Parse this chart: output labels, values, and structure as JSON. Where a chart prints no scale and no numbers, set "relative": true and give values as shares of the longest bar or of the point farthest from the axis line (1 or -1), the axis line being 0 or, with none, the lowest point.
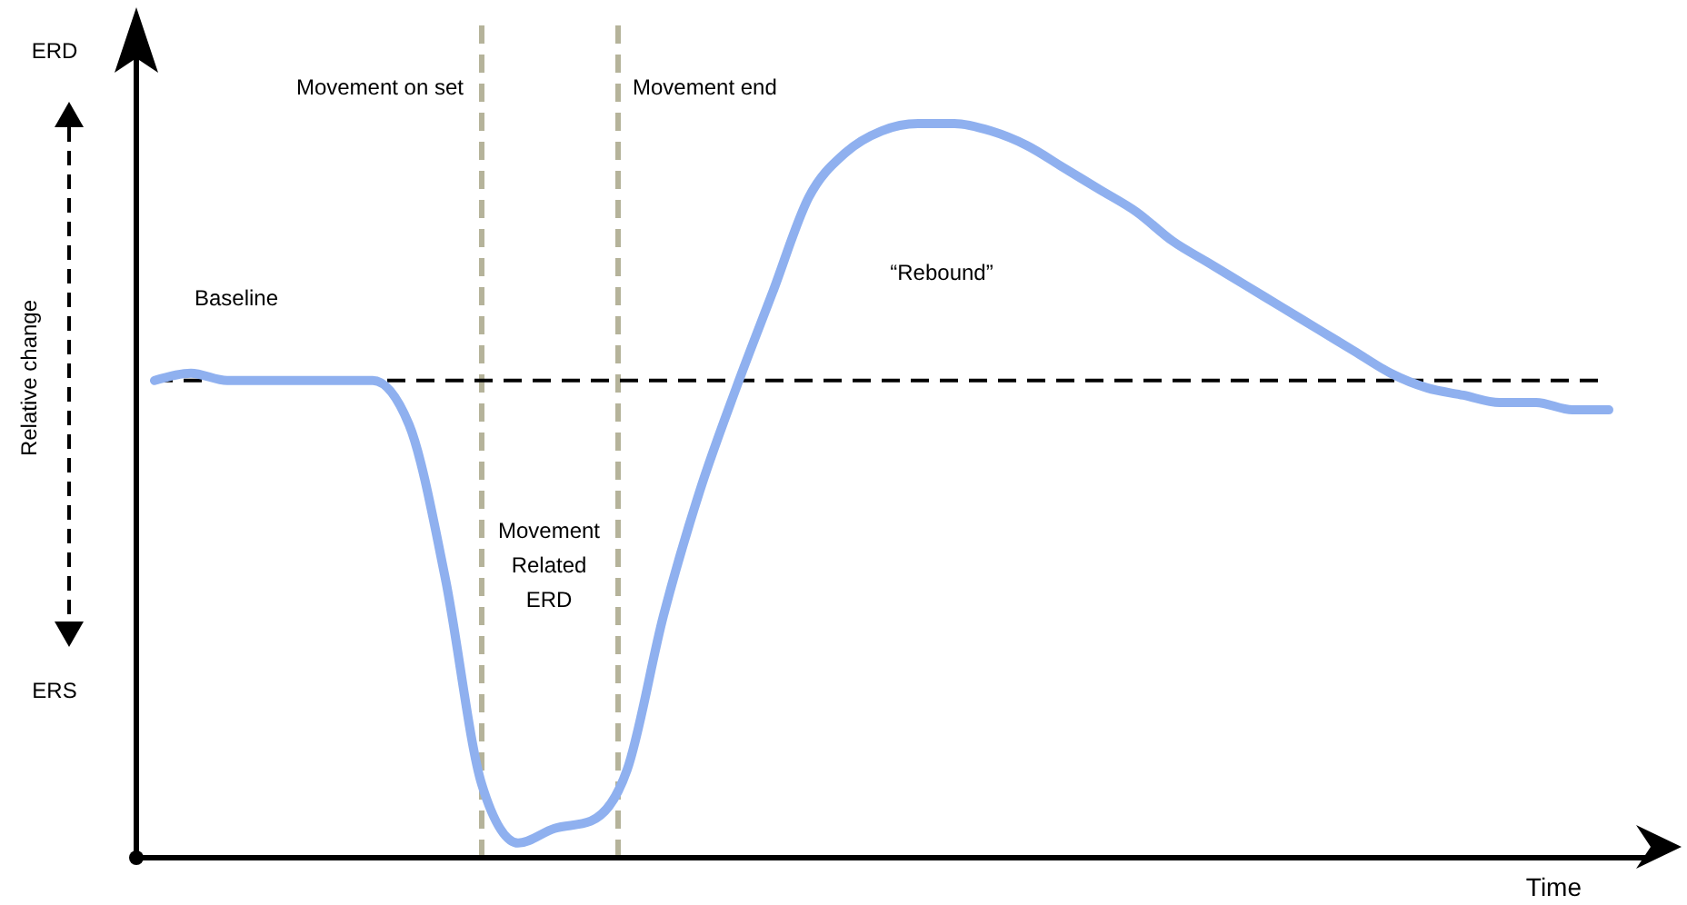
{
  "chart_data": {
    "type": "line",
    "relative": true,
    "xlabel": "Time",
    "ylabel": "Relative change",
    "categories": [
      null,
      null,
      null,
      null,
      null,
      null,
      null,
      null,
      null,
      null,
      null,
      null,
      null,
      null,
      null,
      null,
      null,
      null,
      null,
      null,
      null,
      null,
      null,
      null,
      null,
      null,
      null,
      null,
      null,
      null,
      null,
      null,
      null,
      null,
      null,
      null,
      null,
      null,
      null,
      null,
      null
    ],
    "series": [
      {
        "color": "#8fb0ef",
        "values": [
          0.65,
          0.66,
          0.65,
          0.65,
          0.65,
          0.65,
          0.65,
          0.59,
          0.38,
          0.1,
          0.02,
          0.04,
          0.05,
          0.12,
          0.33,
          0.5,
          0.64,
          0.77,
          0.9,
          0.96,
          0.99,
          1,
          1,
          0.99,
          0.97,
          0.94,
          0.91,
          0.88,
          0.84,
          0.81,
          0.78,
          0.75,
          0.72,
          0.69,
          0.66,
          0.64,
          0.63,
          0.62,
          0.62,
          0.61,
          0.61
        ]
      }
    ],
    "ref_lines": [
      {
        "axis": "y",
        "value": 0.65,
        "color": "#000000",
        "line_style": "dashed"
      }
    ],
    "annotations": [
      "ERD",
      "ERS",
      "Baseline",
      "Movement\nRelated\nERD",
      "“Rebound”",
      "Movement on set",
      "Movement end"
    ],
    "line_style": "solid"
  }
}
